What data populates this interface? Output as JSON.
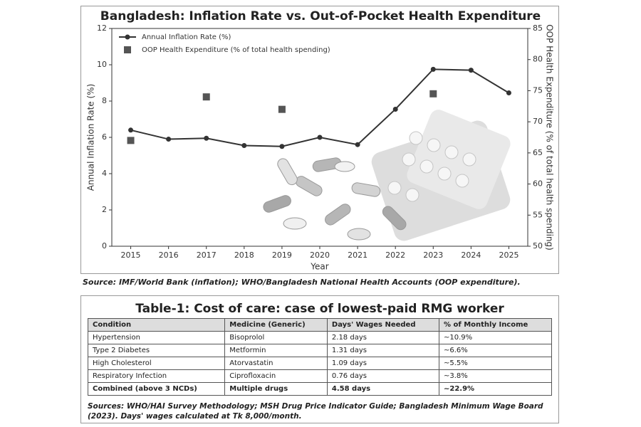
{
  "chart_data": {
    "type": "line",
    "title": "Bangladesh: Inflation Rate vs. Out-of-Pocket Health Expenditure",
    "xlabel": "Year",
    "ylabel": "Annual Inflation Rate (%)",
    "y2label": "OOP Health Expenditure (% of total health spending)",
    "x": [
      2015,
      2016,
      2017,
      2018,
      2019,
      2020,
      2021,
      2022,
      2023,
      2024,
      2025
    ],
    "series": [
      {
        "name": "Annual Inflation Rate (%)",
        "color": "#333333",
        "marker": "circle",
        "values": [
          6.4,
          5.9,
          5.95,
          5.55,
          5.5,
          6.0,
          5.6,
          7.55,
          9.75,
          9.7,
          8.45
        ]
      },
      {
        "name": "OOP Health Expenditure (% of total health spending)",
        "color": "#555555",
        "marker": "square",
        "axis": "y2",
        "values": [
          67,
          null,
          74,
          null,
          72,
          null,
          null,
          null,
          74.5,
          null,
          null
        ]
      }
    ],
    "xlim": [
      2014.5,
      2025.5
    ],
    "xticks": [
      2015,
      2016,
      2017,
      2018,
      2019,
      2020,
      2021,
      2022,
      2023,
      2024,
      2025
    ],
    "ylim": [
      0,
      12
    ],
    "yticks": [
      0,
      2,
      4,
      6,
      8,
      10,
      12
    ],
    "y2lim": [
      50,
      85
    ],
    "y2ticks": [
      50,
      55,
      60,
      65,
      70,
      75,
      80,
      85
    ],
    "grid": false,
    "legend": "upper left"
  },
  "source": "Source: IMF/World Bank (inflation); WHO/Bangladesh National Health Accounts (OOP expenditure).",
  "table": {
    "title": "Table-1: Cost of care: case of lowest-paid RMG worker",
    "columns": [
      "Condition",
      "Medicine (Generic)",
      "Days' Wages Needed",
      "% of Monthly Income"
    ],
    "rows": [
      [
        "Hypertension",
        "Bisoprolol",
        "2.18 days",
        "~10.9%"
      ],
      [
        "Type 2 Diabetes",
        "Metformin",
        "1.31 days",
        "~6.6%"
      ],
      [
        "High Cholesterol",
        "Atorvastatin",
        "1.09 days",
        "~5.5%"
      ],
      [
        "Respiratory Infection",
        "Ciprofloxacin",
        "0.76 days",
        "~3.8%"
      ],
      [
        "Combined (above 3 NCDs)",
        "Multiple drugs",
        "4.58 days",
        "~22.9%"
      ]
    ],
    "footnote": "Sources: WHO/HAI Survey Methodology; MSH Drug Price Indicator Guide; Bangladesh Minimum Wage Board (2023). Days' wages calculated at Tk 8,000/month."
  }
}
